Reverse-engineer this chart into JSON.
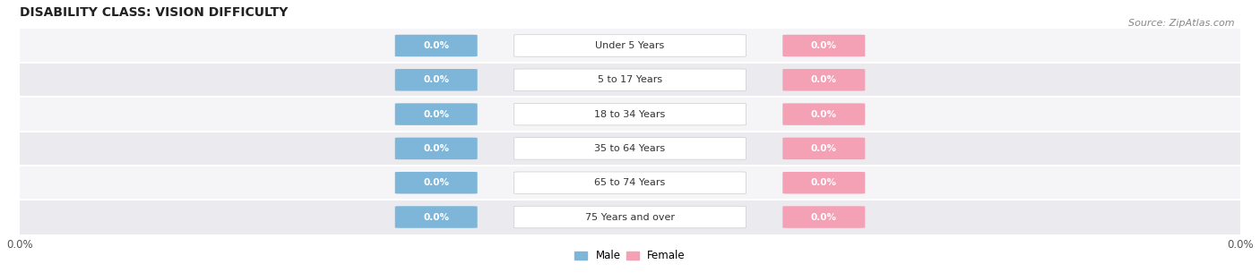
{
  "title": "DISABILITY CLASS: VISION DIFFICULTY",
  "source": "Source: ZipAtlas.com",
  "categories": [
    "Under 5 Years",
    "5 to 17 Years",
    "18 to 34 Years",
    "35 to 64 Years",
    "65 to 74 Years",
    "75 Years and over"
  ],
  "male_values": [
    0.0,
    0.0,
    0.0,
    0.0,
    0.0,
    0.0
  ],
  "female_values": [
    0.0,
    0.0,
    0.0,
    0.0,
    0.0,
    0.0
  ],
  "male_color": "#7eb6d9",
  "female_color": "#f4a0b5",
  "bar_bg_color": "#e8e8ee",
  "bar_bg_color2": "#f0f0f5",
  "row_bg_color1": "#f5f5f7",
  "row_bg_color2": "#ebebef",
  "label_color": "#333333",
  "title_color": "#222222",
  "source_color": "#888888",
  "axis_label_color": "#555555",
  "xlim": [
    -1.0,
    1.0
  ],
  "figsize": [
    14.06,
    3.05
  ],
  "dpi": 100
}
